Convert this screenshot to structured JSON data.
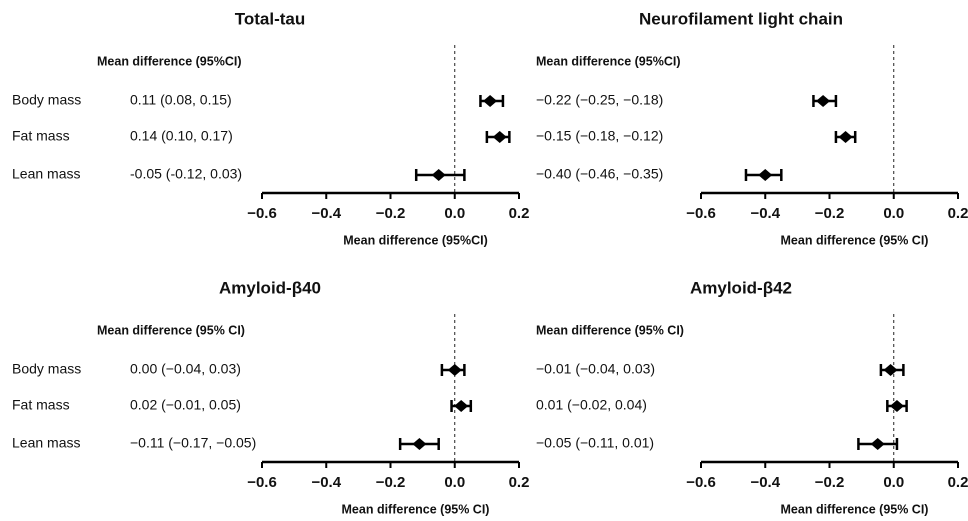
{
  "chart_data": [
    {
      "type": "forest",
      "title": "Total-tau",
      "column_header": "Mean difference (95%CI)",
      "xlabel": "Mean difference (95%CI)",
      "categories": [
        "Body mass",
        "Fat mass",
        "Lean mass"
      ],
      "values": [
        0.11,
        0.14,
        -0.05
      ],
      "lower": [
        0.08,
        0.1,
        -0.12
      ],
      "upper": [
        0.15,
        0.17,
        0.03
      ],
      "value_labels": [
        "0.11 (0.08, 0.15)",
        "0.14 (0.10, 0.17)",
        "-0.05 (-0.12, 0.03)"
      ],
      "xlim": [
        -0.6,
        0.2
      ],
      "xticks": [
        {
          "value": -0.6,
          "label": "−0.6"
        },
        {
          "value": -0.4,
          "label": "−0.4"
        },
        {
          "value": -0.2,
          "label": "−0.2"
        },
        {
          "value": 0,
          "label": "0.0"
        },
        0.2
      ],
      "reference_line": 0,
      "color": "#000000"
    },
    {
      "type": "forest",
      "title": "Neurofilament light chain",
      "column_header": "Mean difference (95%CI)",
      "xlabel": "Mean difference (95% CI)",
      "categories": [
        null,
        null,
        null
      ],
      "values": [
        -0.22,
        -0.15,
        -0.4
      ],
      "lower": [
        -0.25,
        -0.18,
        -0.46
      ],
      "upper": [
        -0.18,
        -0.12,
        -0.35
      ],
      "value_labels": [
        "−0.22 (−0.25, −0.18)",
        "−0.15 (−0.18, −0.12)",
        "−0.40 (−0.46, −0.35)"
      ],
      "xlim": [
        -0.6,
        0.2
      ],
      "xticks": [
        {
          "value": -0.6,
          "label": "−0.6"
        },
        {
          "value": -0.4,
          "label": "−0.4"
        },
        {
          "value": -0.2,
          "label": "−0.2"
        },
        {
          "value": 0,
          "label": "0.0"
        },
        0.2
      ],
      "reference_line": 0,
      "color": "#000000"
    },
    {
      "type": "forest",
      "title": "Amyloid-β40",
      "column_header": "Mean difference (95% CI)",
      "xlabel": "Mean difference (95% CI)",
      "categories": [
        "Body mass",
        "Fat mass",
        "Lean mass"
      ],
      "values": [
        0.0,
        0.02,
        -0.11
      ],
      "lower": [
        -0.04,
        -0.01,
        -0.17
      ],
      "upper": [
        0.03,
        0.05,
        -0.05
      ],
      "value_labels": [
        "0.00 (−0.04, 0.03)",
        "0.02 (−0.01, 0.05)",
        "−0.11 (−0.17, −0.05)"
      ],
      "xlim": [
        -0.6,
        0.2
      ],
      "xticks": [
        {
          "value": -0.6,
          "label": "−0.6"
        },
        {
          "value": -0.4,
          "label": "−0.4"
        },
        {
          "value": -0.2,
          "label": "−0.2"
        },
        {
          "value": 0,
          "label": "0.0"
        },
        0.2
      ],
      "reference_line": 0,
      "color": "#000000"
    },
    {
      "type": "forest",
      "title": "Amyloid-β42",
      "column_header": "Mean difference (95% CI)",
      "xlabel": "Mean difference (95% CI)",
      "categories": [
        null,
        null,
        null
      ],
      "values": [
        -0.01,
        0.01,
        -0.05
      ],
      "lower": [
        -0.04,
        -0.02,
        -0.11
      ],
      "upper": [
        0.03,
        0.04,
        0.01
      ],
      "value_labels": [
        "−0.01 (−0.04, 0.03)",
        "0.01 (−0.02, 0.04)",
        "−0.05 (−0.11, 0.01)"
      ],
      "xlim": [
        -0.6,
        0.2
      ],
      "xticks": [
        {
          "value": -0.6,
          "label": "−0.6"
        },
        {
          "value": -0.4,
          "label": "−0.4"
        },
        {
          "value": -0.2,
          "label": "−0.2"
        },
        {
          "value": 0,
          "label": "0.0"
        },
        0.2
      ],
      "reference_line": 0,
      "color": "#000000"
    }
  ]
}
